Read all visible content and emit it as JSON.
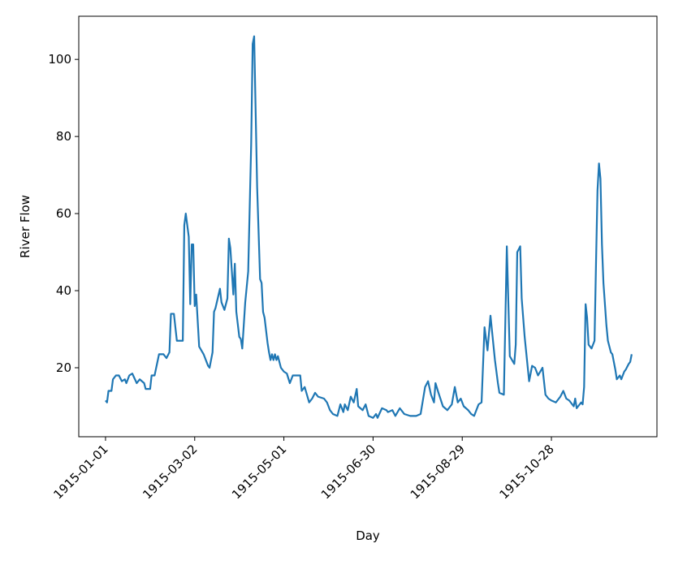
{
  "chart_data": {
    "type": "line",
    "x_label": "Day",
    "y_label": "River Flow",
    "x": [
      "1915-01-01",
      "1915-01-02",
      "1915-01-03",
      "1915-01-05",
      "1915-01-06",
      "1915-01-08",
      "1915-01-10",
      "1915-01-12",
      "1915-01-14",
      "1915-01-15",
      "1915-01-17",
      "1915-01-19",
      "1915-01-22",
      "1915-01-24",
      "1915-01-27",
      "1915-01-28",
      "1915-01-31",
      "1915-02-01",
      "1915-02-03",
      "1915-02-06",
      "1915-02-09",
      "1915-02-11",
      "1915-02-13",
      "1915-02-14",
      "1915-02-16",
      "1915-02-18",
      "1915-02-22",
      "1915-02-23",
      "1915-02-24",
      "1915-02-26",
      "1915-02-27",
      "1915-02-28",
      "1915-03-01",
      "1915-03-02",
      "1915-03-03",
      "1915-03-05",
      "1915-03-08",
      "1915-03-11",
      "1915-03-12",
      "1915-03-14",
      "1915-03-15",
      "1915-03-16",
      "1915-03-19",
      "1915-03-20",
      "1915-03-22",
      "1915-03-24",
      "1915-03-25",
      "1915-03-26",
      "1915-03-28",
      "1915-03-29",
      "1915-03-30",
      "1915-04-01",
      "1915-04-02",
      "1915-04-03",
      "1915-04-05",
      "1915-04-07",
      "1915-04-09",
      "1915-04-10",
      "1915-04-11",
      "1915-04-13",
      "1915-04-15",
      "1915-04-16",
      "1915-04-17",
      "1915-04-18",
      "1915-04-20",
      "1915-04-21",
      "1915-04-22",
      "1915-04-23",
      "1915-04-24",
      "1915-04-25",
      "1915-04-26",
      "1915-04-27",
      "1915-04-29",
      "1915-05-01",
      "1915-05-03",
      "1915-05-05",
      "1915-05-07",
      "1915-05-12",
      "1915-05-13",
      "1915-05-15",
      "1915-05-18",
      "1915-05-20",
      "1915-05-22",
      "1915-05-24",
      "1915-05-28",
      "1915-05-30",
      "1915-06-01",
      "1915-06-03",
      "1915-06-06",
      "1915-06-08",
      "1915-06-10",
      "1915-06-11",
      "1915-06-13",
      "1915-06-15",
      "1915-06-17",
      "1915-06-19",
      "1915-06-20",
      "1915-06-23",
      "1915-06-25",
      "1915-06-27",
      "1915-06-30",
      "1915-07-02",
      "1915-07-03",
      "1915-07-06",
      "1915-07-09",
      "1915-07-10",
      "1915-07-13",
      "1915-07-15",
      "1915-07-18",
      "1915-07-21",
      "1915-07-25",
      "1915-07-29",
      "1915-08-01",
      "1915-08-04",
      "1915-08-06",
      "1915-08-08",
      "1915-08-10",
      "1915-08-11",
      "1915-08-13",
      "1915-08-16",
      "1915-08-19",
      "1915-08-22",
      "1915-08-24",
      "1915-08-26",
      "1915-08-28",
      "1915-08-30",
      "1915-09-02",
      "1915-09-04",
      "1915-09-06",
      "1915-09-09",
      "1915-09-11",
      "1915-09-13",
      "1915-09-15",
      "1915-09-17",
      "1915-09-20",
      "1915-09-22",
      "1915-09-23",
      "1915-09-26",
      "1915-09-28",
      "1915-09-30",
      "1915-10-03",
      "1915-10-04",
      "1915-10-05",
      "1915-10-07",
      "1915-10-08",
      "1915-10-10",
      "1915-10-13",
      "1915-10-15",
      "1915-10-17",
      "1915-10-19",
      "1915-10-22",
      "1915-10-24",
      "1915-10-26",
      "1915-10-28",
      "1915-10-31",
      "1915-11-03",
      "1915-11-05",
      "1915-11-07",
      "1915-11-09",
      "1915-11-12",
      "1915-11-13",
      "1915-11-14",
      "1915-11-17",
      "1915-11-18",
      "1915-11-19",
      "1915-11-20",
      "1915-11-21",
      "1915-11-22",
      "1915-11-24",
      "1915-11-26",
      "1915-11-27",
      "1915-11-28",
      "1915-11-29",
      "1915-11-30",
      "1915-12-01",
      "1915-12-02",
      "1915-12-04",
      "1915-12-05",
      "1915-12-07",
      "1915-12-08",
      "1915-12-10",
      "1915-12-11",
      "1915-12-13",
      "1915-12-14",
      "1915-12-16",
      "1915-12-17",
      "1915-12-19",
      "1915-12-20",
      "1915-12-21"
    ],
    "values": [
      11.5,
      11,
      14,
      14,
      17,
      18,
      18,
      16.5,
      17,
      16,
      18,
      18.5,
      16,
      17,
      16,
      14.5,
      14.5,
      18,
      18,
      23.5,
      23.5,
      22.5,
      24,
      34,
      34,
      27,
      27,
      57,
      60,
      54,
      36.5,
      52,
      52,
      36,
      39,
      25.5,
      23.5,
      20.5,
      20,
      24,
      34.5,
      35.5,
      40.5,
      37,
      35,
      38,
      53.5,
      51,
      39,
      47,
      34.5,
      28,
      27.5,
      25,
      37,
      45,
      78,
      104,
      106,
      67,
      43,
      42,
      34.5,
      33,
      26.5,
      24,
      22,
      23.5,
      22,
      23.5,
      22,
      23,
      20,
      19,
      18.5,
      16,
      18,
      18,
      14,
      15,
      11,
      12,
      13.5,
      12.5,
      12,
      11,
      9,
      8,
      7.5,
      10.5,
      8.5,
      10.5,
      9,
      12.5,
      11,
      14.5,
      10,
      9,
      10.5,
      7.5,
      7,
      8,
      7,
      9.5,
      9,
      8.5,
      9,
      7.5,
      9.5,
      8,
      7.5,
      7.5,
      8,
      15,
      16.5,
      13,
      11,
      16,
      13.5,
      10,
      9,
      10.5,
      15,
      11,
      12,
      10,
      9,
      8,
      7.5,
      10.5,
      11,
      30.5,
      24.5,
      33.5,
      22,
      16,
      13.5,
      13,
      51.5,
      23,
      21,
      26,
      50,
      51.5,
      38,
      28,
      16.5,
      20.5,
      20,
      18,
      20,
      13,
      12,
      11.5,
      11,
      12.5,
      14,
      12,
      11.5,
      10,
      12,
      9.5,
      11,
      10.5,
      15,
      36.5,
      33,
      26,
      25,
      27,
      47,
      66,
      73,
      69,
      52,
      42,
      31,
      27,
      24,
      23.5,
      19.5,
      17,
      18,
      17,
      19,
      19.5,
      21,
      21.5,
      23.5
    ],
    "color": "#1f77b4",
    "xlim": [
      "1914-12-14",
      "1916-01-07"
    ],
    "xticks": [
      "1915-01-01",
      "1915-03-02",
      "1915-05-01",
      "1915-06-30",
      "1915-08-29",
      "1915-10-28"
    ],
    "ylim": [
      2.1,
      111.2
    ],
    "yticks": [
      20,
      40,
      60,
      80,
      100
    ]
  }
}
